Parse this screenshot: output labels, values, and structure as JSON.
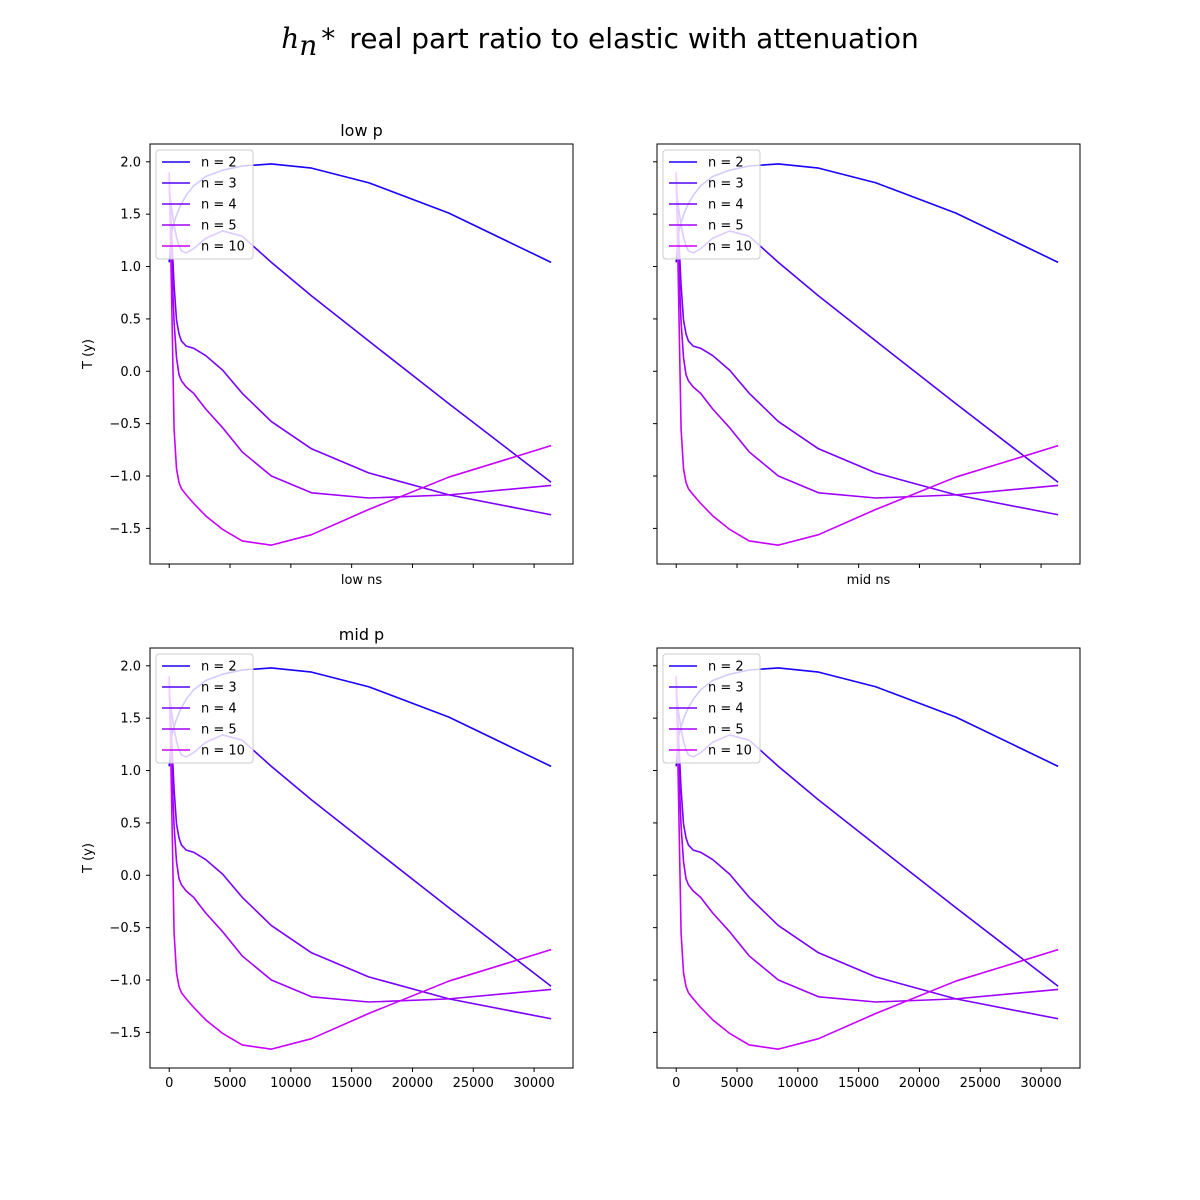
{
  "figure": {
    "title_math": "h",
    "title_math_sub": "n",
    "title_math_star": "*",
    "title_text": "real part ratio to elastic with attenuation"
  },
  "legend_location": "upper left",
  "chart_data": [
    {
      "type": "line",
      "title": "low p",
      "xlabel": "low ns",
      "ylabel": "T (y)",
      "xlim": [
        -1580,
        33200
      ],
      "ylim": [
        -1.84,
        2.17
      ],
      "xticks": [
        0,
        5000,
        10000,
        15000,
        20000,
        25000,
        30000
      ],
      "xtick_labels_visible": false,
      "yticks": [
        -1.5,
        -1.0,
        -0.5,
        0.0,
        0.5,
        1.0,
        1.5,
        2.0
      ],
      "ytick_labels": [
        "−1.5",
        "−1.0",
        "−0.5",
        "0.0",
        "0.5",
        "1.0",
        "1.5",
        "2.0"
      ],
      "ytick_labels_visible": true,
      "series": [
        {
          "name": "n = 2",
          "color": "#1a00ff",
          "x": [
            0,
            200,
            400,
            600,
            800,
            1000,
            1400,
            2000,
            3000,
            4400,
            6000,
            8400,
            11700,
            16400,
            23000,
            31400
          ],
          "y": [
            1.04,
            1.33,
            1.42,
            1.49,
            1.55,
            1.6,
            1.68,
            1.77,
            1.86,
            1.92,
            1.96,
            1.98,
            1.94,
            1.8,
            1.51,
            1.04
          ]
        },
        {
          "name": "n = 3",
          "color": "#5000ff",
          "x": [
            0,
            200,
            400,
            600,
            800,
            1000,
            1400,
            2000,
            3000,
            4400,
            6000,
            8400,
            11700,
            16400,
            23000,
            31400
          ],
          "y": [
            1.72,
            1.55,
            1.4,
            1.28,
            1.2,
            1.15,
            1.13,
            1.17,
            1.27,
            1.34,
            1.29,
            1.04,
            0.72,
            0.29,
            -0.31,
            -1.06
          ]
        },
        {
          "name": "n = 4",
          "color": "#7a00ff",
          "x": [
            0,
            200,
            400,
            600,
            800,
            1000,
            1400,
            2000,
            3000,
            4400,
            6000,
            8400,
            11700,
            16400,
            23000,
            31400
          ],
          "y": [
            1.85,
            1.3,
            0.82,
            0.49,
            0.36,
            0.29,
            0.24,
            0.22,
            0.15,
            0.01,
            -0.21,
            -0.48,
            -0.74,
            -0.97,
            -1.18,
            -1.37
          ]
        },
        {
          "name": "n = 5",
          "color": "#a000ff",
          "x": [
            0,
            200,
            400,
            600,
            800,
            1000,
            1400,
            2000,
            3000,
            4400,
            6000,
            8400,
            11700,
            16400,
            23000,
            31400
          ],
          "y": [
            1.88,
            1.05,
            0.47,
            0.13,
            -0.03,
            -0.09,
            -0.15,
            -0.21,
            -0.36,
            -0.54,
            -0.77,
            -1.0,
            -1.16,
            -1.21,
            -1.18,
            -1.09
          ]
        },
        {
          "name": "n = 10",
          "color": "#c800ff",
          "x": [
            0,
            200,
            400,
            600,
            800,
            1000,
            1400,
            2000,
            3000,
            4400,
            6000,
            8400,
            11700,
            16400,
            23000,
            31400
          ],
          "y": [
            1.9,
            0.7,
            -0.55,
            -0.93,
            -1.06,
            -1.12,
            -1.18,
            -1.26,
            -1.38,
            -1.51,
            -1.62,
            -1.66,
            -1.56,
            -1.32,
            -1.01,
            -0.71
          ]
        }
      ]
    },
    {
      "type": "line",
      "title": "",
      "xlabel": "mid ns",
      "ylabel": "",
      "xlim": [
        -1580,
        33200
      ],
      "ylim": [
        -1.84,
        2.17
      ],
      "xticks": [
        0,
        5000,
        10000,
        15000,
        20000,
        25000,
        30000
      ],
      "xtick_labels_visible": false,
      "yticks": [
        -1.5,
        -1.0,
        -0.5,
        0.0,
        0.5,
        1.0,
        1.5,
        2.0
      ],
      "ytick_labels_visible": false,
      "series": [
        {
          "name": "n = 2",
          "color": "#1a00ff",
          "x": [
            0,
            200,
            400,
            600,
            800,
            1000,
            1400,
            2000,
            3000,
            4400,
            6000,
            8400,
            11700,
            16400,
            23000,
            31400
          ],
          "y": [
            1.04,
            1.33,
            1.42,
            1.49,
            1.55,
            1.6,
            1.68,
            1.77,
            1.86,
            1.92,
            1.96,
            1.98,
            1.94,
            1.8,
            1.51,
            1.04
          ]
        },
        {
          "name": "n = 3",
          "color": "#5000ff",
          "x": [
            0,
            200,
            400,
            600,
            800,
            1000,
            1400,
            2000,
            3000,
            4400,
            6000,
            8400,
            11700,
            16400,
            23000,
            31400
          ],
          "y": [
            1.72,
            1.55,
            1.4,
            1.28,
            1.2,
            1.15,
            1.13,
            1.17,
            1.27,
            1.34,
            1.29,
            1.04,
            0.72,
            0.29,
            -0.31,
            -1.06
          ]
        },
        {
          "name": "n = 4",
          "color": "#7a00ff",
          "x": [
            0,
            200,
            400,
            600,
            800,
            1000,
            1400,
            2000,
            3000,
            4400,
            6000,
            8400,
            11700,
            16400,
            23000,
            31400
          ],
          "y": [
            1.85,
            1.3,
            0.82,
            0.49,
            0.36,
            0.29,
            0.24,
            0.22,
            0.15,
            0.01,
            -0.21,
            -0.48,
            -0.74,
            -0.97,
            -1.18,
            -1.37
          ]
        },
        {
          "name": "n = 5",
          "color": "#a000ff",
          "x": [
            0,
            200,
            400,
            600,
            800,
            1000,
            1400,
            2000,
            3000,
            4400,
            6000,
            8400,
            11700,
            16400,
            23000,
            31400
          ],
          "y": [
            1.88,
            1.05,
            0.47,
            0.13,
            -0.03,
            -0.09,
            -0.15,
            -0.21,
            -0.36,
            -0.54,
            -0.77,
            -1.0,
            -1.16,
            -1.21,
            -1.18,
            -1.09
          ]
        },
        {
          "name": "n = 10",
          "color": "#c800ff",
          "x": [
            0,
            200,
            400,
            600,
            800,
            1000,
            1400,
            2000,
            3000,
            4400,
            6000,
            8400,
            11700,
            16400,
            23000,
            31400
          ],
          "y": [
            1.9,
            0.7,
            -0.55,
            -0.93,
            -1.06,
            -1.12,
            -1.18,
            -1.26,
            -1.38,
            -1.51,
            -1.62,
            -1.66,
            -1.56,
            -1.32,
            -1.01,
            -0.71
          ]
        }
      ]
    },
    {
      "type": "line",
      "title": "mid p",
      "xlabel": "",
      "ylabel": "T (y)",
      "xlim": [
        -1580,
        33200
      ],
      "ylim": [
        -1.84,
        2.17
      ],
      "xticks": [
        0,
        5000,
        10000,
        15000,
        20000,
        25000,
        30000
      ],
      "xtick_labels": [
        "0",
        "5000",
        "10000",
        "15000",
        "20000",
        "25000",
        "30000"
      ],
      "xtick_labels_visible": true,
      "yticks": [
        -1.5,
        -1.0,
        -0.5,
        0.0,
        0.5,
        1.0,
        1.5,
        2.0
      ],
      "ytick_labels": [
        "−1.5",
        "−1.0",
        "−0.5",
        "0.0",
        "0.5",
        "1.0",
        "1.5",
        "2.0"
      ],
      "ytick_labels_visible": true,
      "series": [
        {
          "name": "n = 2",
          "color": "#1a00ff",
          "x": [
            0,
            200,
            400,
            600,
            800,
            1000,
            1400,
            2000,
            3000,
            4400,
            6000,
            8400,
            11700,
            16400,
            23000,
            31400
          ],
          "y": [
            1.04,
            1.33,
            1.42,
            1.49,
            1.55,
            1.6,
            1.68,
            1.77,
            1.86,
            1.92,
            1.96,
            1.98,
            1.94,
            1.8,
            1.51,
            1.04
          ]
        },
        {
          "name": "n = 3",
          "color": "#5000ff",
          "x": [
            0,
            200,
            400,
            600,
            800,
            1000,
            1400,
            2000,
            3000,
            4400,
            6000,
            8400,
            11700,
            16400,
            23000,
            31400
          ],
          "y": [
            1.72,
            1.55,
            1.4,
            1.28,
            1.2,
            1.15,
            1.13,
            1.17,
            1.27,
            1.34,
            1.29,
            1.04,
            0.72,
            0.29,
            -0.31,
            -1.06
          ]
        },
        {
          "name": "n = 4",
          "color": "#7a00ff",
          "x": [
            0,
            200,
            400,
            600,
            800,
            1000,
            1400,
            2000,
            3000,
            4400,
            6000,
            8400,
            11700,
            16400,
            23000,
            31400
          ],
          "y": [
            1.85,
            1.3,
            0.82,
            0.49,
            0.36,
            0.29,
            0.24,
            0.22,
            0.15,
            0.01,
            -0.21,
            -0.48,
            -0.74,
            -0.97,
            -1.18,
            -1.37
          ]
        },
        {
          "name": "n = 5",
          "color": "#a000ff",
          "x": [
            0,
            200,
            400,
            600,
            800,
            1000,
            1400,
            2000,
            3000,
            4400,
            6000,
            8400,
            11700,
            16400,
            23000,
            31400
          ],
          "y": [
            1.88,
            1.05,
            0.47,
            0.13,
            -0.03,
            -0.09,
            -0.15,
            -0.21,
            -0.36,
            -0.54,
            -0.77,
            -1.0,
            -1.16,
            -1.21,
            -1.18,
            -1.09
          ]
        },
        {
          "name": "n = 10",
          "color": "#c800ff",
          "x": [
            0,
            200,
            400,
            600,
            800,
            1000,
            1400,
            2000,
            3000,
            4400,
            6000,
            8400,
            11700,
            16400,
            23000,
            31400
          ],
          "y": [
            1.9,
            0.7,
            -0.55,
            -0.93,
            -1.06,
            -1.12,
            -1.18,
            -1.26,
            -1.38,
            -1.51,
            -1.62,
            -1.66,
            -1.56,
            -1.32,
            -1.01,
            -0.71
          ]
        }
      ]
    },
    {
      "type": "line",
      "title": "",
      "xlabel": "",
      "ylabel": "",
      "xlim": [
        -1580,
        33200
      ],
      "ylim": [
        -1.84,
        2.17
      ],
      "xticks": [
        0,
        5000,
        10000,
        15000,
        20000,
        25000,
        30000
      ],
      "xtick_labels": [
        "0",
        "5000",
        "10000",
        "15000",
        "20000",
        "25000",
        "30000"
      ],
      "xtick_labels_visible": true,
      "yticks": [
        -1.5,
        -1.0,
        -0.5,
        0.0,
        0.5,
        1.0,
        1.5,
        2.0
      ],
      "ytick_labels_visible": false,
      "series": [
        {
          "name": "n = 2",
          "color": "#1a00ff",
          "x": [
            0,
            200,
            400,
            600,
            800,
            1000,
            1400,
            2000,
            3000,
            4400,
            6000,
            8400,
            11700,
            16400,
            23000,
            31400
          ],
          "y": [
            1.04,
            1.33,
            1.42,
            1.49,
            1.55,
            1.6,
            1.68,
            1.77,
            1.86,
            1.92,
            1.96,
            1.98,
            1.94,
            1.8,
            1.51,
            1.04
          ]
        },
        {
          "name": "n = 3",
          "color": "#5000ff",
          "x": [
            0,
            200,
            400,
            600,
            800,
            1000,
            1400,
            2000,
            3000,
            4400,
            6000,
            8400,
            11700,
            16400,
            23000,
            31400
          ],
          "y": [
            1.72,
            1.55,
            1.4,
            1.28,
            1.2,
            1.15,
            1.13,
            1.17,
            1.27,
            1.34,
            1.29,
            1.04,
            0.72,
            0.29,
            -0.31,
            -1.06
          ]
        },
        {
          "name": "n = 4",
          "color": "#7a00ff",
          "x": [
            0,
            200,
            400,
            600,
            800,
            1000,
            1400,
            2000,
            3000,
            4400,
            6000,
            8400,
            11700,
            16400,
            23000,
            31400
          ],
          "y": [
            1.85,
            1.3,
            0.82,
            0.49,
            0.36,
            0.29,
            0.24,
            0.22,
            0.15,
            0.01,
            -0.21,
            -0.48,
            -0.74,
            -0.97,
            -1.18,
            -1.37
          ]
        },
        {
          "name": "n = 5",
          "color": "#a000ff",
          "x": [
            0,
            200,
            400,
            600,
            800,
            1000,
            1400,
            2000,
            3000,
            4400,
            6000,
            8400,
            11700,
            16400,
            23000,
            31400
          ],
          "y": [
            1.88,
            1.05,
            0.47,
            0.13,
            -0.03,
            -0.09,
            -0.15,
            -0.21,
            -0.36,
            -0.54,
            -0.77,
            -1.0,
            -1.16,
            -1.21,
            -1.18,
            -1.09
          ]
        },
        {
          "name": "n = 10",
          "color": "#c800ff",
          "x": [
            0,
            200,
            400,
            600,
            800,
            1000,
            1400,
            2000,
            3000,
            4400,
            6000,
            8400,
            11700,
            16400,
            23000,
            31400
          ],
          "y": [
            1.9,
            0.7,
            -0.55,
            -0.93,
            -1.06,
            -1.12,
            -1.18,
            -1.26,
            -1.38,
            -1.51,
            -1.62,
            -1.66,
            -1.56,
            -1.32,
            -1.01,
            -0.71
          ]
        }
      ]
    }
  ]
}
